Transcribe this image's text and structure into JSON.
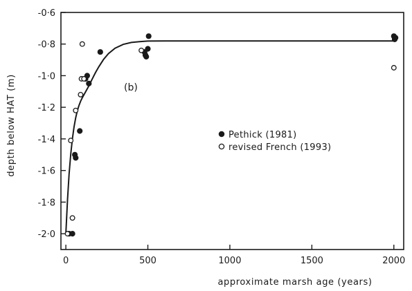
{
  "chart_data": {
    "type": "scatter",
    "title": "",
    "xlabel": "approximate marsh age (years)",
    "ylabel": "depth below HAT (m)",
    "panel_label": "(b)",
    "xlim": [
      -30,
      2060
    ],
    "ylim": [
      -2.1,
      -0.6
    ],
    "x_ticks": [
      0,
      500,
      1000,
      1500,
      2000
    ],
    "x_tick_labels": [
      "0",
      "500",
      "1000",
      "1500",
      "2000"
    ],
    "y_ticks": [
      -0.6,
      -0.8,
      -1.0,
      -1.2,
      -1.4,
      -1.6,
      -1.8,
      -2.0
    ],
    "y_tick_labels": [
      "-0·6",
      "-0·8",
      "-1·0",
      "-1·2",
      "-1·4",
      "-1·6",
      "-1·8",
      "-2·0"
    ],
    "grid": false,
    "legend_position": "center-right",
    "series": [
      {
        "name": "Pethick (1981)",
        "marker": "filled-circle",
        "x": [
          20,
          40,
          55,
          60,
          85,
          120,
          130,
          140,
          210,
          480,
          485,
          490,
          500,
          505,
          2000,
          2005,
          2010
        ],
        "y": [
          -2.0,
          -2.0,
          -1.5,
          -1.52,
          -1.35,
          -1.02,
          -1.0,
          -1.05,
          -0.85,
          -0.85,
          -0.87,
          -0.88,
          -0.83,
          -0.75,
          -0.75,
          -0.77,
          -0.76
        ]
      },
      {
        "name": "revised French (1993)",
        "marker": "open-circle",
        "x": [
          10,
          30,
          40,
          60,
          90,
          95,
          100,
          110,
          460,
          2000
        ],
        "y": [
          -2.0,
          -1.41,
          -1.9,
          -1.22,
          -1.12,
          -1.02,
          -0.8,
          -1.02,
          -0.84,
          -0.95
        ]
      }
    ],
    "curve": {
      "label": "fitted curve",
      "x": [
        0,
        10,
        20,
        30,
        40,
        50,
        60,
        70,
        80,
        90,
        100,
        120,
        140,
        160,
        180,
        200,
        230,
        260,
        300,
        350,
        400,
        450,
        500,
        600,
        800,
        1000,
        1500,
        2000
      ],
      "y": [
        -2.0,
        -1.785,
        -1.621,
        -1.495,
        -1.398,
        -1.325,
        -1.267,
        -1.222,
        -1.188,
        -1.162,
        -1.14,
        -1.103,
        -1.065,
        -1.023,
        -0.982,
        -0.945,
        -0.897,
        -0.86,
        -0.826,
        -0.802,
        -0.79,
        -0.785,
        -0.781,
        -0.78,
        -0.78,
        -0.78,
        -0.78,
        -0.78
      ]
    }
  }
}
